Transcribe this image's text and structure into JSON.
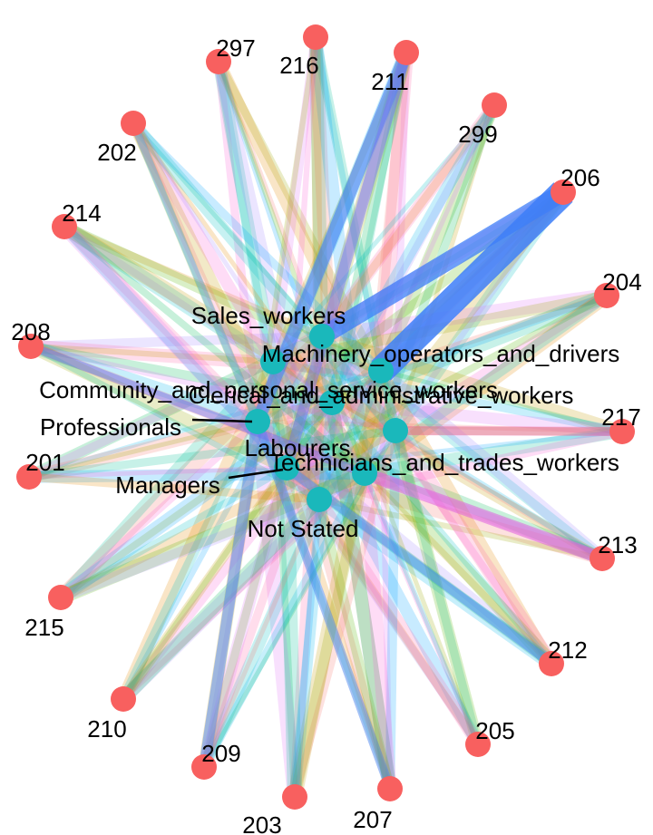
{
  "colors": {
    "outer_node": "#f8605f",
    "inner_node": "#1ab8bb",
    "palette": [
      "#f8766d",
      "#e38900",
      "#c49a00",
      "#99a800",
      "#53b400",
      "#00bc56",
      "#00c094",
      "#00bfc4",
      "#00b6eb",
      "#06a4ff",
      "#a58aff",
      "#df70f8",
      "#fb61d7",
      "#ff66a8"
    ]
  },
  "graph": {
    "outer_nodes": [
      {
        "id": "297",
        "label": "297"
      },
      {
        "id": "216",
        "label": "216"
      },
      {
        "id": "211",
        "label": "211"
      },
      {
        "id": "299",
        "label": "299"
      },
      {
        "id": "206",
        "label": "206"
      },
      {
        "id": "204",
        "label": "204"
      },
      {
        "id": "217",
        "label": "217"
      },
      {
        "id": "213",
        "label": "213"
      },
      {
        "id": "212",
        "label": "212"
      },
      {
        "id": "205",
        "label": "205"
      },
      {
        "id": "207",
        "label": "207"
      },
      {
        "id": "203",
        "label": "203"
      },
      {
        "id": "209",
        "label": "209"
      },
      {
        "id": "210",
        "label": "210"
      },
      {
        "id": "215",
        "label": "215"
      },
      {
        "id": "201",
        "label": "201"
      },
      {
        "id": "208",
        "label": "208"
      },
      {
        "id": "214",
        "label": "214"
      },
      {
        "id": "202",
        "label": "202"
      }
    ],
    "inner_nodes": [
      {
        "id": "sales",
        "label": "Sales_workers"
      },
      {
        "id": "machinery",
        "label": "Machinery_operators_and_drivers"
      },
      {
        "id": "community",
        "label": "Community_and_personal_service_workers"
      },
      {
        "id": "clerical",
        "label": "Clerical_and_administrative_workers"
      },
      {
        "id": "professionals",
        "label": "Professionals"
      },
      {
        "id": "labourers",
        "label": "Labourers"
      },
      {
        "id": "technicians",
        "label": "Technicians_and_trades_workers"
      },
      {
        "id": "managers",
        "label": "Managers"
      },
      {
        "id": "notstated",
        "label": "Not Stated"
      }
    ]
  }
}
